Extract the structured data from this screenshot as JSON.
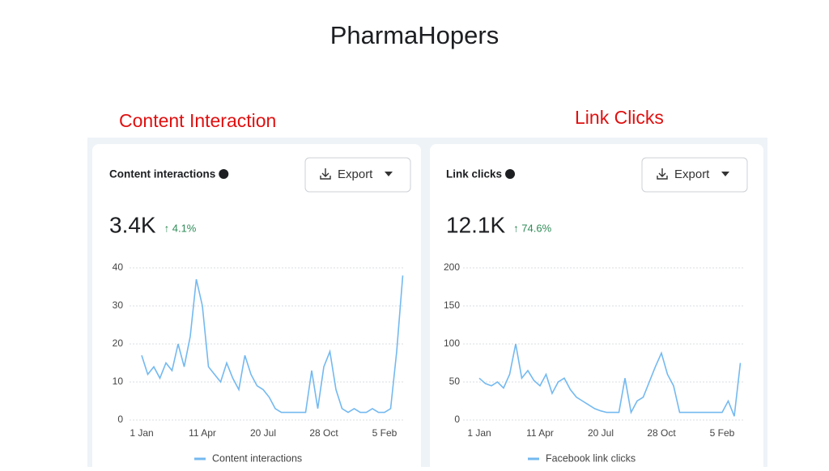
{
  "header": {
    "title": "PharmaHopers"
  },
  "panels": [
    {
      "label": "Content Interaction",
      "export": "Export",
      "total": "3.4K",
      "change": "↑ 4.1%"
    },
    {
      "label": "Link Clicks",
      "export": "Export",
      "total": "12.1K",
      "change": "↑ 74.6%"
    }
  ],
  "chart_data": [
    {
      "type": "line",
      "title": "Content interactions",
      "categories": [
        "1 Jan",
        null,
        null,
        null,
        null,
        null,
        null,
        null,
        null,
        null,
        "11 Apr",
        null,
        null,
        null,
        null,
        null,
        null,
        null,
        null,
        null,
        "20 Jul",
        null,
        null,
        null,
        null,
        null,
        null,
        null,
        null,
        null,
        "28 Oct",
        null,
        null,
        null,
        null,
        null,
        null,
        null,
        null,
        null,
        "5 Feb",
        null,
        null,
        null
      ],
      "series": [
        {
          "name": "Content interactions",
          "color": "#74b9f0",
          "values": [
            17,
            12,
            14,
            11,
            15,
            13,
            20,
            14,
            22,
            37,
            30,
            14,
            12,
            10,
            15,
            11,
            8,
            17,
            12,
            9,
            8,
            6,
            3,
            2,
            2,
            2,
            2,
            2,
            13,
            3,
            14,
            18,
            8,
            3,
            2,
            3,
            2,
            2,
            3,
            2,
            2,
            3,
            18,
            38
          ]
        }
      ],
      "ylim": [
        0,
        40
      ],
      "yticks": [
        0,
        10,
        20,
        30,
        40
      ],
      "grid": true
    },
    {
      "type": "line",
      "title": "Link clicks",
      "categories": [
        "1 Jan",
        null,
        null,
        null,
        null,
        null,
        null,
        null,
        null,
        null,
        "11 Apr",
        null,
        null,
        null,
        null,
        null,
        null,
        null,
        null,
        null,
        "20 Jul",
        null,
        null,
        null,
        null,
        null,
        null,
        null,
        null,
        null,
        "28 Oct",
        null,
        null,
        null,
        null,
        null,
        null,
        null,
        null,
        null,
        "5 Feb",
        null,
        null,
        null
      ],
      "series": [
        {
          "name": "Facebook link clicks",
          "color": "#74b9f0",
          "values": [
            55,
            48,
            45,
            50,
            42,
            60,
            100,
            55,
            65,
            52,
            45,
            60,
            35,
            50,
            55,
            40,
            30,
            25,
            20,
            15,
            12,
            10,
            10,
            10,
            55,
            10,
            25,
            30,
            50,
            70,
            88,
            60,
            45,
            10,
            10,
            10,
            10,
            10,
            10,
            10,
            10,
            25,
            5,
            75
          ]
        }
      ],
      "ylim": [
        0,
        200
      ],
      "yticks": [
        0,
        50,
        100,
        150,
        200
      ],
      "grid": true
    }
  ]
}
